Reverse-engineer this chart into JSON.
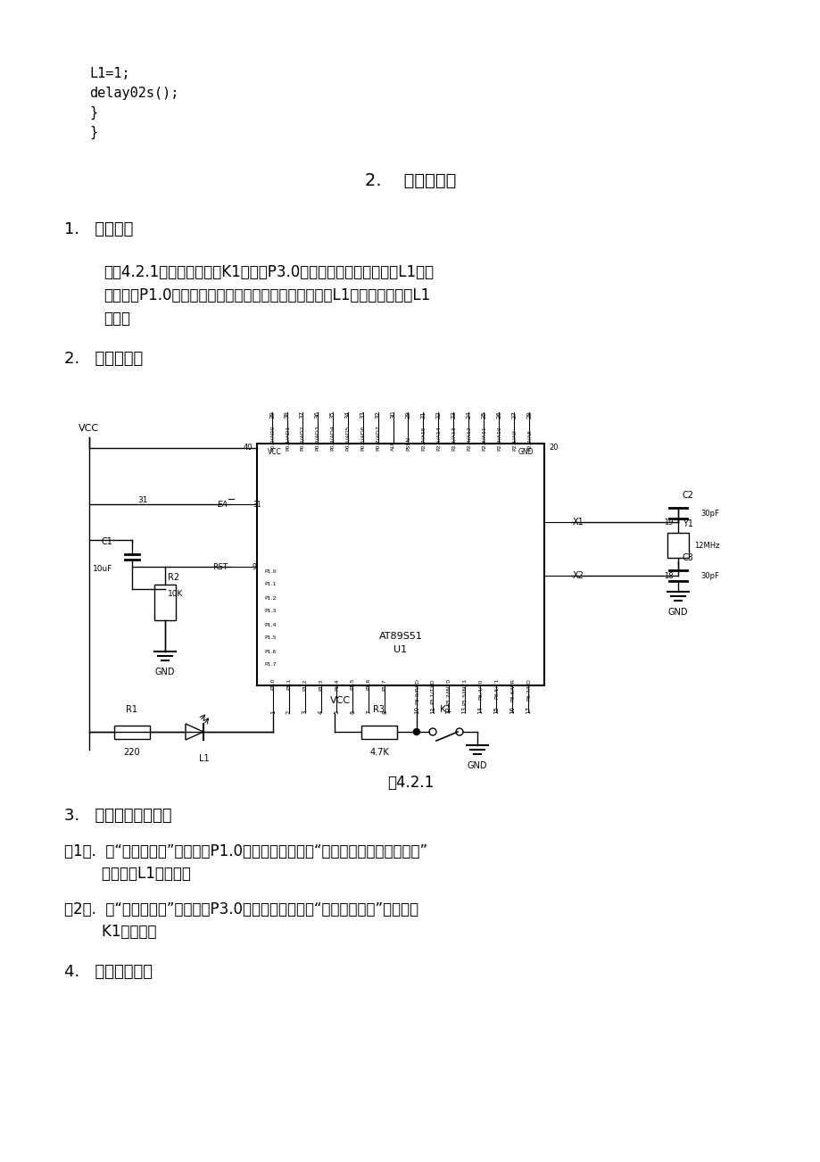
{
  "bg_color": "#ffffff",
  "text_color": "#000000",
  "code_lines": [
    "L1=1;",
    "delay02s();",
    "}",
    "}"
  ],
  "section_title": "2.    模拟开关灯",
  "para1_line1": "如图4.2.1所示，监视开关K1（接在P3.0端口上），用发光二极管L1（接",
  "para1_line2": "在单片机P1.0端口上）显示开关状态，如果开关合上，L1亮，开关打开，L1",
  "para1_line3": "息灯。",
  "fig_caption": "图4.2.1",
  "hw1_line1": "（1）.  把“单片机系统”区域中的P1.0端口用导线连接到“八路发光二极管指示模块”",
  "hw1_line2": "        区域中的L1端口上；",
  "hw2_line1": "（2）.  把“单片机系统”区域中的P3.0端口用导线连接到“四路拨动开关”区域中的",
  "hw2_line2": "        K1端口上；",
  "font_size_code": 11,
  "font_size_body": 12,
  "font_size_section": 13,
  "font_size_title": 14
}
